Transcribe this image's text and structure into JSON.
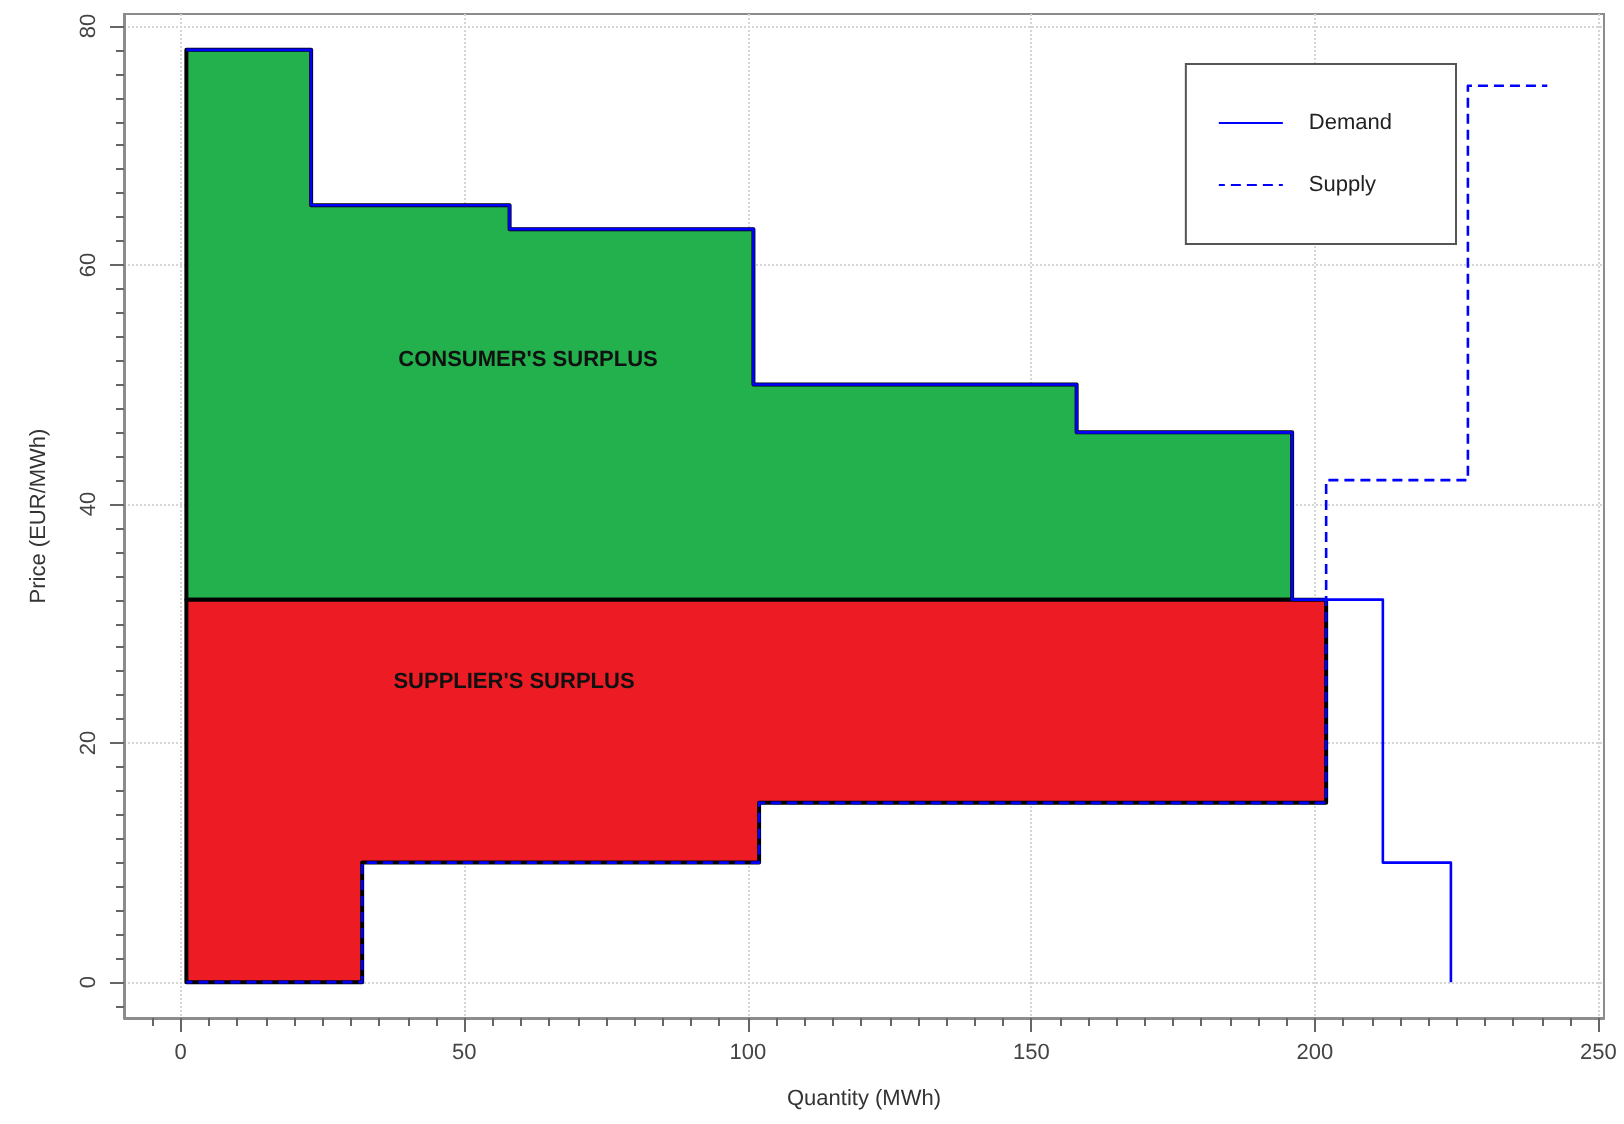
{
  "chart_data": {
    "type": "step",
    "xlabel": "Quantity (MWh)",
    "ylabel": "Price (EUR/MWh)",
    "xlim": [
      -10,
      251
    ],
    "ylim": [
      -3,
      81
    ],
    "xticks": [
      {
        "value": -5,
        "label": null
      },
      0,
      {
        "value": 5,
        "label": null
      },
      {
        "value": 10,
        "label": null
      },
      {
        "value": 15,
        "label": null
      },
      {
        "value": 20,
        "label": null
      },
      {
        "value": 25,
        "label": null
      },
      {
        "value": 30,
        "label": null
      },
      {
        "value": 35,
        "label": null
      },
      {
        "value": 40,
        "label": null
      },
      {
        "value": 45,
        "label": null
      },
      50,
      {
        "value": 55,
        "label": null
      },
      {
        "value": 60,
        "label": null
      },
      {
        "value": 65,
        "label": null
      },
      {
        "value": 70,
        "label": null
      },
      {
        "value": 75,
        "label": null
      },
      {
        "value": 80,
        "label": null
      },
      {
        "value": 85,
        "label": null
      },
      {
        "value": 90,
        "label": null
      },
      {
        "value": 95,
        "label": null
      },
      100,
      {
        "value": 105,
        "label": null
      },
      {
        "value": 110,
        "label": null
      },
      {
        "value": 115,
        "label": null
      },
      {
        "value": 120,
        "label": null
      },
      {
        "value": 125,
        "label": null
      },
      {
        "value": 130,
        "label": null
      },
      {
        "value": 135,
        "label": null
      },
      {
        "value": 140,
        "label": null
      },
      {
        "value": 145,
        "label": null
      },
      150,
      {
        "value": 155,
        "label": null
      },
      {
        "value": 160,
        "label": null
      },
      {
        "value": 165,
        "label": null
      },
      {
        "value": 170,
        "label": null
      },
      {
        "value": 175,
        "label": null
      },
      {
        "value": 180,
        "label": null
      },
      {
        "value": 185,
        "label": null
      },
      {
        "value": 190,
        "label": null
      },
      {
        "value": 195,
        "label": null
      },
      200,
      {
        "value": 205,
        "label": null
      },
      {
        "value": 210,
        "label": null
      },
      {
        "value": 215,
        "label": null
      },
      {
        "value": 220,
        "label": null
      },
      {
        "value": 225,
        "label": null
      },
      {
        "value": 230,
        "label": null
      },
      {
        "value": 235,
        "label": null
      },
      {
        "value": 240,
        "label": null
      },
      {
        "value": 245,
        "label": null
      },
      250
    ],
    "yticks": [
      {
        "value": -2,
        "label": null
      },
      0,
      {
        "value": 2,
        "label": null
      },
      {
        "value": 4,
        "label": null
      },
      {
        "value": 6,
        "label": null
      },
      {
        "value": 8,
        "label": null
      },
      {
        "value": 10,
        "label": null
      },
      {
        "value": 12,
        "label": null
      },
      {
        "value": 14,
        "label": null
      },
      {
        "value": 16,
        "label": null
      },
      {
        "value": 18,
        "label": null
      },
      20,
      {
        "value": 22,
        "label": null
      },
      {
        "value": 24,
        "label": null
      },
      {
        "value": 26,
        "label": null
      },
      {
        "value": 28,
        "label": null
      },
      {
        "value": 30,
        "label": null
      },
      {
        "value": 32,
        "label": null
      },
      {
        "value": 34,
        "label": null
      },
      {
        "value": 36,
        "label": null
      },
      {
        "value": 38,
        "label": null
      },
      40,
      {
        "value": 42,
        "label": null
      },
      {
        "value": 44,
        "label": null
      },
      {
        "value": 46,
        "label": null
      },
      {
        "value": 48,
        "label": null
      },
      {
        "value": 50,
        "label": null
      },
      {
        "value": 52,
        "label": null
      },
      {
        "value": 54,
        "label": null
      },
      {
        "value": 56,
        "label": null
      },
      {
        "value": 58,
        "label": null
      },
      60,
      {
        "value": 62,
        "label": null
      },
      {
        "value": 64,
        "label": null
      },
      {
        "value": 66,
        "label": null
      },
      {
        "value": 68,
        "label": null
      },
      {
        "value": 70,
        "label": null
      },
      {
        "value": 72,
        "label": null
      },
      {
        "value": 74,
        "label": null
      },
      {
        "value": 76,
        "label": null
      },
      {
        "value": 78,
        "label": null
      },
      80
    ],
    "grid": true,
    "legend": "top right",
    "series": [
      {
        "type": "area",
        "color": "#22b14c",
        "x": [
          1,
          23,
          23,
          58,
          58,
          101,
          101,
          158,
          158,
          196
        ],
        "values": [
          null,
          null,
          null,
          null,
          null,
          null,
          null,
          null,
          null,
          null
        ],
        "lower": [
          32,
          32,
          32,
          32,
          32,
          32,
          32,
          32,
          32,
          32
        ],
        "upper": [
          78,
          78,
          65,
          65,
          63,
          63,
          50,
          50,
          46,
          46
        ]
      },
      {
        "type": "area",
        "color": "#ed1c24",
        "x": [
          1,
          32,
          32,
          102,
          102,
          202
        ],
        "values": [
          null,
          null,
          null,
          null,
          null,
          null
        ],
        "lower": [
          0,
          0,
          10,
          10,
          15,
          15
        ],
        "upper": [
          32,
          32,
          32,
          32,
          32,
          32
        ]
      },
      {
        "type": "step",
        "name": "Demand",
        "color": "#0000ff",
        "line_style": "solid",
        "x": [
          1,
          23,
          58,
          101,
          158,
          196,
          212,
          224
        ],
        "values": [
          78,
          65,
          63,
          50,
          46,
          32,
          10,
          0
        ]
      },
      {
        "name": "Supply",
        "color": "#0000ff",
        "line_style": "dashed",
        "x": [
          1,
          32,
          102,
          202,
          227,
          241
        ],
        "values": [
          0,
          10,
          15,
          42,
          75,
          75
        ]
      }
    ],
    "annotations": [
      "CONSUMER'S SURPLUS",
      "SUPPLIER'S SURPLUS"
    ]
  }
}
